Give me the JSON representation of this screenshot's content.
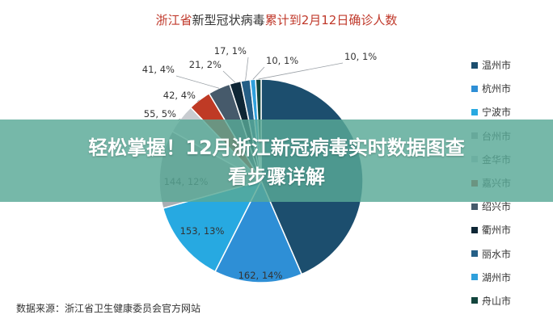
{
  "chart_data": {
    "type": "pie",
    "title_red_part1": "浙江省",
    "title_dark_part": "新型冠状病毒",
    "title_red_part2": "累计到2月12日确诊人数",
    "categories": [
      "温州市",
      "杭州市",
      "宁波市",
      "台州市",
      "金华市",
      "嘉兴市",
      "绍兴市",
      "衢州市",
      "丽水市",
      "湖州市",
      "舟山市"
    ],
    "values": [
      504,
      162,
      153,
      144,
      55,
      42,
      41,
      21,
      17,
      10,
      10
    ],
    "labels": [
      "",
      "162, 14%",
      "153, 13%",
      "144, 12%",
      "55, 5%",
      "42, 4%",
      "41, 4%",
      "21, 2%",
      "17, 1%",
      "10, 1%",
      "10, 1%"
    ],
    "colors": [
      "#1c4e6e",
      "#2e8fd6",
      "#27a9e1",
      "#a9aeb3",
      "#c8ccd0",
      "#bf3a25",
      "#465a6b",
      "#0e2635",
      "#255f86",
      "#2fa0dc",
      "#12453d"
    ],
    "legend_position": "right"
  },
  "source": "数据来源：浙江省卫生健康委员会官方网站",
  "banner": {
    "line1": "轻松掌握！12月浙江新冠病毒实时数据图查",
    "line2": "看步骤详解"
  }
}
